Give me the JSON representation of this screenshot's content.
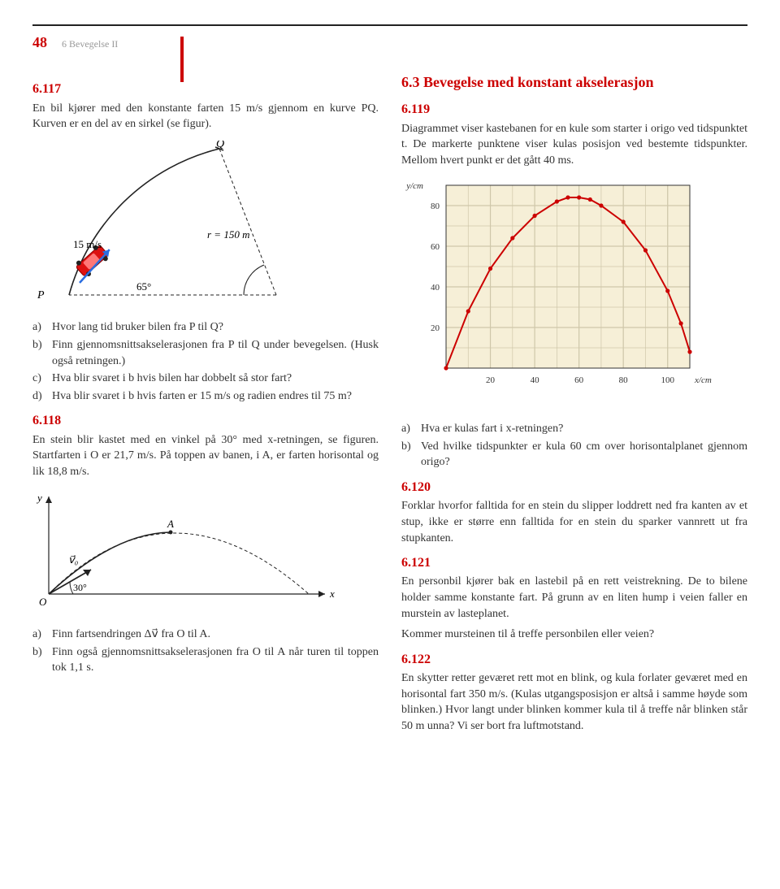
{
  "page_number": "48",
  "chapter_label": "6  Bevegelse II",
  "section_title": "6.3 Bevegelse med konstant akselerasjon",
  "colors": {
    "accent": "#c00",
    "grid_bg": "#f6efd7",
    "grid_line": "#cfc7aa",
    "curve": "#c00",
    "car_body": "#d11",
    "arrow_blue": "#2a6de0",
    "text": "#333",
    "muted": "#999",
    "black": "#222"
  },
  "ex6117": {
    "num": "6.117",
    "intro": "En bil kjører med den konstante farten 15 m/s gjennom en kurve PQ. Kurven er en del av en sirkel (se figur).",
    "fig": {
      "P": "P",
      "Q": "Q",
      "speed": "15 m/s",
      "angle": "65°",
      "radius": "r = 150 m"
    },
    "qa": "Hvor lang tid bruker bilen fra P til Q?",
    "qb": "Finn gjennomsnittsakselerasjonen fra P til Q under bevegelsen. (Husk også retningen.)",
    "qc": "Hva blir svaret i b hvis bilen har dobbelt så stor fart?",
    "qd": "Hva blir svaret i b hvis farten er 15 m/s og radien endres til 75 m?"
  },
  "ex6118": {
    "num": "6.118",
    "intro": "En stein blir kastet med en vinkel på 30° med x-retningen, se figuren. Startfarten i O er 21,7 m/s. På toppen av banen, i A, er farten horisontal og lik 18,8 m/s.",
    "fig": {
      "O": "O",
      "A": "A",
      "angle": "30°",
      "x": "x",
      "y": "y",
      "v0": "v⃗₀"
    },
    "qa": "Finn fartsendringen Δv⃗ fra O til A.",
    "qb": "Finn også gjennomsnittsakselerasjonen fra O til A når turen til toppen tok 1,1 s."
  },
  "ex6119": {
    "num": "6.119",
    "intro": "Diagrammet viser kastebanen for en kule som starter i origo ved tidspunktet t. De markerte punktene viser kulas posisjon ved bestemte tidspunkter. Mellom hvert punkt er det gått 40 ms.",
    "chart": {
      "type": "scatter+curve",
      "xlim": [
        0,
        110
      ],
      "ylim": [
        0,
        90
      ],
      "xticks": [
        20,
        40,
        60,
        80,
        100
      ],
      "yticks": [
        20,
        40,
        60,
        80
      ],
      "xlabel": "x/cm",
      "ylabel": "y/cm",
      "grid_step": 10,
      "curve_color": "#c00",
      "bg_color": "#f6efd7",
      "grid_color": "#cfc7aa",
      "point_color": "#c00",
      "axis_fontsize": 11,
      "points": [
        [
          0,
          0
        ],
        [
          10,
          28
        ],
        [
          20,
          49
        ],
        [
          30,
          64
        ],
        [
          40,
          75
        ],
        [
          50,
          82
        ],
        [
          55,
          84
        ],
        [
          60,
          84
        ],
        [
          65,
          83
        ],
        [
          70,
          80
        ],
        [
          80,
          72
        ],
        [
          90,
          58
        ],
        [
          100,
          38
        ],
        [
          106,
          22
        ],
        [
          110,
          8
        ]
      ]
    },
    "qa": "Hva er kulas fart i x-retningen?",
    "qb": "Ved hvilke tidspunkter er kula 60 cm over horisontalplanet gjennom origo?"
  },
  "ex6120": {
    "num": "6.120",
    "text": "Forklar hvorfor falltida for en stein du slipper loddrett ned fra kanten av et stup, ikke er større enn falltida for en stein du sparker vannrett ut fra stupkanten."
  },
  "ex6121": {
    "num": "6.121",
    "text": "En personbil kjører bak en lastebil på en rett veistrekning. De to bilene holder samme konstante fart. På grunn av en liten hump i veien faller en murstein av lasteplanet.",
    "q": "Kommer mursteinen til å treffe personbilen eller veien?"
  },
  "ex6122": {
    "num": "6.122",
    "text": "En skytter retter geværet rett mot en blink, og kula forlater geværet med en horisontal fart 350 m/s. (Kulas utgangsposisjon er altså i samme høyde som blinken.) Hvor langt under blinken kommer kula til å treffe når blinken står 50 m unna? Vi ser bort fra luftmotstand."
  },
  "labels": {
    "a": "a)",
    "b": "b)",
    "c": "c)",
    "d": "d)"
  }
}
